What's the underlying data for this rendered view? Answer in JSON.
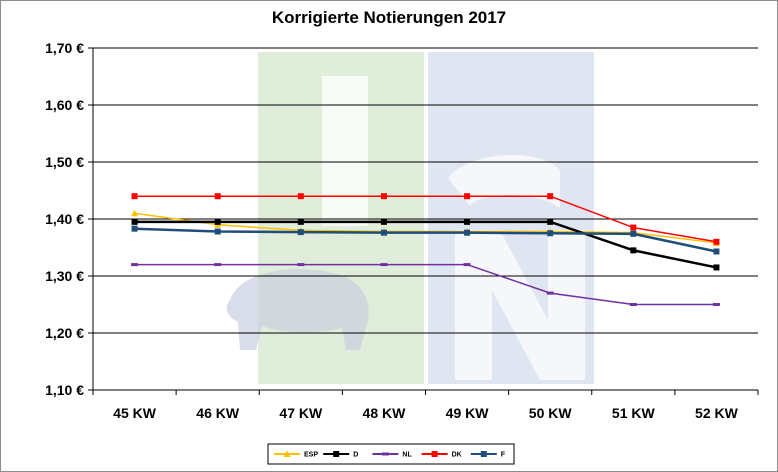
{
  "chart_data": {
    "type": "line",
    "title": "Korrigierte Notierungen 2017",
    "xlabel": "",
    "ylabel": "",
    "categories": [
      "45 KW",
      "46 KW",
      "47 KW",
      "48 KW",
      "49 KW",
      "50 KW",
      "51 KW",
      "52 KW"
    ],
    "ylim": [
      1.1,
      1.7
    ],
    "yticks": [
      1.1,
      1.2,
      1.3,
      1.4,
      1.5,
      1.6,
      1.7
    ],
    "ytick_labels": [
      "1,10 €",
      "1,20 €",
      "1,30 €",
      "1,40 €",
      "1,50 €",
      "1,60 €",
      "1,70 €"
    ],
    "grid": "horizontal",
    "legend_position": "bottom",
    "series": [
      {
        "name": "ESP",
        "color": "#ffc000",
        "marker": "triangle",
        "values": [
          1.41,
          1.39,
          1.38,
          1.378,
          1.378,
          1.378,
          1.376,
          1.358
        ]
      },
      {
        "name": "D",
        "color": "#000000",
        "marker": "square",
        "values": [
          1.395,
          1.395,
          1.395,
          1.395,
          1.395,
          1.395,
          1.345,
          1.315
        ]
      },
      {
        "name": "NL",
        "color": "#7030a0",
        "marker": "dash",
        "values": [
          1.32,
          1.32,
          1.32,
          1.32,
          1.32,
          1.27,
          1.25,
          1.25
        ]
      },
      {
        "name": "DK",
        "color": "#ff0000",
        "marker": "square",
        "values": [
          1.44,
          1.44,
          1.44,
          1.44,
          1.44,
          1.44,
          1.385,
          1.36
        ]
      },
      {
        "name": "F",
        "color": "#1f4e79",
        "marker": "square",
        "values": [
          1.383,
          1.378,
          1.377,
          1.376,
          1.376,
          1.375,
          1.374,
          1.343
        ]
      }
    ]
  },
  "watermark": {
    "letters": [
      "I",
      "S",
      "N"
    ],
    "colors": [
      "#d9ead3",
      "#d9e1ef"
    ]
  }
}
